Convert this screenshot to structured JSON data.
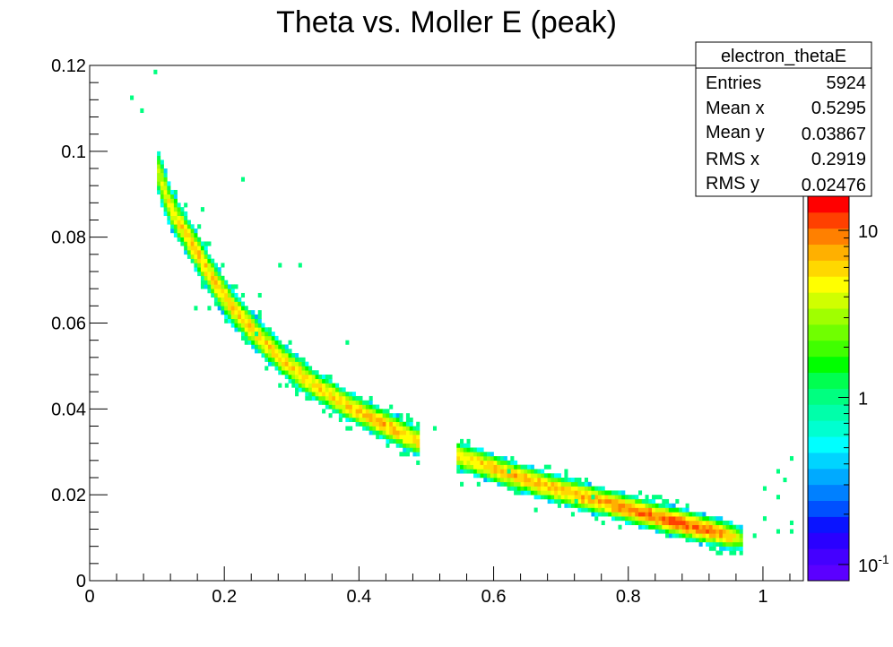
{
  "chart_data": {
    "type": "heatmap",
    "title": "Theta vs. Moller E (peak)",
    "xlabel": "",
    "ylabel": "",
    "xlim": [
      0,
      1.06
    ],
    "ylim": [
      0,
      0.12
    ],
    "x_ticks": [
      {
        "v": 0,
        "label": "0"
      },
      {
        "v": 0.2,
        "label": "0.2"
      },
      {
        "v": 0.4,
        "label": "0.4"
      },
      {
        "v": 0.6,
        "label": "0.6"
      },
      {
        "v": 0.8,
        "label": "0.8"
      },
      {
        "v": 1,
        "label": "1"
      }
    ],
    "y_ticks": [
      {
        "v": 0,
        "label": "0"
      },
      {
        "v": 0.02,
        "label": "0.02"
      },
      {
        "v": 0.04,
        "label": "0.04"
      },
      {
        "v": 0.06,
        "label": "0.06"
      },
      {
        "v": 0.08,
        "label": "0.08"
      },
      {
        "v": 0.1,
        "label": "0.1"
      },
      {
        "v": 0.12,
        "label": "0.12"
      }
    ],
    "z_scale": "log",
    "z_range": [
      0.08,
      16
    ],
    "z_ticks": [
      {
        "v": 0.1,
        "label": "10",
        "sup": "-1"
      },
      {
        "v": 1,
        "label": "1",
        "sup": ""
      },
      {
        "v": 10,
        "label": "10",
        "sup": ""
      }
    ],
    "colors": [
      "#5b00ff",
      "#4400ff",
      "#2a00ff",
      "#0a14ff",
      "#0050ff",
      "#0080ff",
      "#00aaff",
      "#00d4ff",
      "#00ffff",
      "#00ffd0",
      "#00ffaa",
      "#00ff80",
      "#00ff50",
      "#00ff00",
      "#40ff00",
      "#70ff00",
      "#a0ff00",
      "#d0ff00",
      "#ffff00",
      "#ffd800",
      "#ffb000",
      "#ff8000",
      "#ff4000",
      "#ff0000"
    ],
    "stats": {
      "name": "electron_thetaE",
      "rows": [
        {
          "label": "Entries",
          "value": "5924"
        },
        {
          "label": "Mean x",
          "value": "0.5295"
        },
        {
          "label": "Mean y",
          "value": "0.03867"
        },
        {
          "label": "RMS x",
          "value": "0.2919"
        },
        {
          "label": "RMS y",
          "value": "0.02476"
        }
      ]
    },
    "band": [
      {
        "x": 0.1,
        "y": 0.096,
        "peak": 3
      },
      {
        "x": 0.12,
        "y": 0.087,
        "peak": 5
      },
      {
        "x": 0.15,
        "y": 0.079,
        "peak": 6
      },
      {
        "x": 0.18,
        "y": 0.071,
        "peak": 6
      },
      {
        "x": 0.21,
        "y": 0.064,
        "peak": 6
      },
      {
        "x": 0.25,
        "y": 0.057,
        "peak": 6
      },
      {
        "x": 0.29,
        "y": 0.051,
        "peak": 6
      },
      {
        "x": 0.33,
        "y": 0.046,
        "peak": 6
      },
      {
        "x": 0.38,
        "y": 0.041,
        "peak": 6
      },
      {
        "x": 0.43,
        "y": 0.037,
        "peak": 7
      },
      {
        "x": 0.48,
        "y": 0.033,
        "peak": 6
      },
      {
        "x": 0.55,
        "y": 0.029,
        "peak": 6
      },
      {
        "x": 0.62,
        "y": 0.025,
        "peak": 7
      },
      {
        "x": 0.7,
        "y": 0.021,
        "peak": 7
      },
      {
        "x": 0.77,
        "y": 0.018,
        "peak": 8
      },
      {
        "x": 0.84,
        "y": 0.015,
        "peak": 10
      },
      {
        "x": 0.9,
        "y": 0.0125,
        "peak": 11
      },
      {
        "x": 0.95,
        "y": 0.0105,
        "peak": 7
      },
      {
        "x": 0.97,
        "y": 0.0098,
        "peak": 2
      }
    ],
    "gaps": [
      [
        0.49,
        0.545
      ]
    ],
    "outliers": [
      {
        "x": 0.095,
        "y": 0.119
      },
      {
        "x": 0.06,
        "y": 0.112
      },
      {
        "x": 0.075,
        "y": 0.109
      },
      {
        "x": 0.165,
        "y": 0.087
      },
      {
        "x": 0.175,
        "y": 0.078
      },
      {
        "x": 0.225,
        "y": 0.093
      },
      {
        "x": 0.28,
        "y": 0.073
      },
      {
        "x": 0.31,
        "y": 0.073
      },
      {
        "x": 0.155,
        "y": 0.063
      },
      {
        "x": 0.175,
        "y": 0.063
      },
      {
        "x": 0.245,
        "y": 0.057
      },
      {
        "x": 0.25,
        "y": 0.066
      },
      {
        "x": 0.285,
        "y": 0.045
      },
      {
        "x": 0.4,
        "y": 0.043
      },
      {
        "x": 0.38,
        "y": 0.055
      },
      {
        "x": 0.41,
        "y": 0.035
      },
      {
        "x": 0.445,
        "y": 0.032
      },
      {
        "x": 0.51,
        "y": 0.035
      },
      {
        "x": 0.553,
        "y": 0.022
      },
      {
        "x": 0.62,
        "y": 0.025
      },
      {
        "x": 0.66,
        "y": 0.016
      },
      {
        "x": 0.72,
        "y": 0.018
      },
      {
        "x": 0.745,
        "y": 0.019
      },
      {
        "x": 0.855,
        "y": 0.01
      },
      {
        "x": 0.885,
        "y": 0.009
      },
      {
        "x": 0.985,
        "y": 0.0105
      },
      {
        "x": 1.0,
        "y": 0.014
      },
      {
        "x": 1.02,
        "y": 0.019
      },
      {
        "x": 1.035,
        "y": 0.023
      },
      {
        "x": 1.045,
        "y": 0.028
      },
      {
        "x": 1.0,
        "y": 0.021
      },
      {
        "x": 1.02,
        "y": 0.025
      },
      {
        "x": 1.04,
        "y": 0.013
      },
      {
        "x": 1.045,
        "y": 0.011
      },
      {
        "x": 1.025,
        "y": 0.011
      }
    ]
  }
}
